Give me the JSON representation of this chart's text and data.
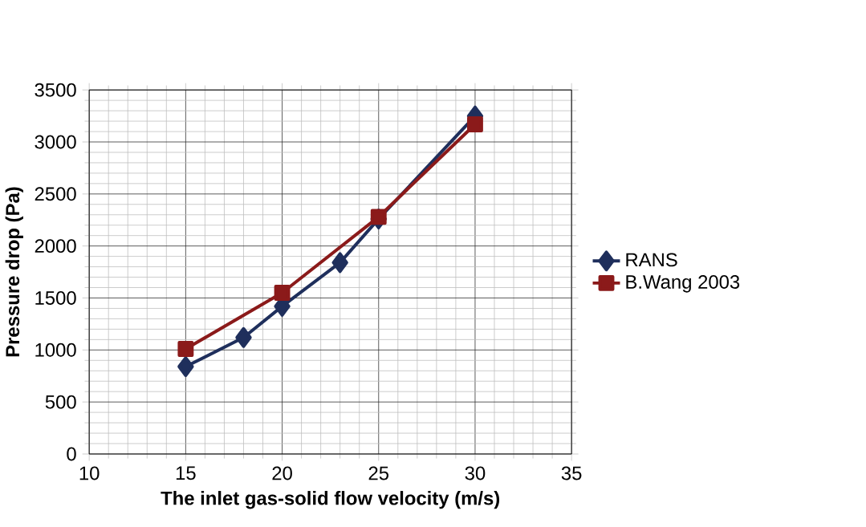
{
  "chart_data": {
    "type": "line",
    "xlabel": "The inlet gas-solid flow velocity (m/s)",
    "ylabel": "Pressure drop (Pa)",
    "xlim": [
      10,
      35
    ],
    "xticks": [
      10,
      15,
      20,
      25,
      30,
      35
    ],
    "ylim": [
      0,
      3500
    ],
    "yticks": [
      0,
      500,
      1000,
      1500,
      2000,
      2500,
      3000,
      3500
    ],
    "grid": true,
    "legend": "right",
    "series": [
      {
        "name": "RANS",
        "color": "#1f2f5c",
        "marker": "diamond",
        "x": [
          15,
          18,
          20,
          23,
          25,
          30
        ],
        "values": [
          840,
          1120,
          1420,
          1840,
          2260,
          3250
        ]
      },
      {
        "name": "B.Wang 2003",
        "color": "#8b1a1a",
        "marker": "square",
        "x": [
          15,
          20,
          25,
          30
        ],
        "values": [
          1010,
          1550,
          2280,
          3170
        ]
      }
    ]
  }
}
